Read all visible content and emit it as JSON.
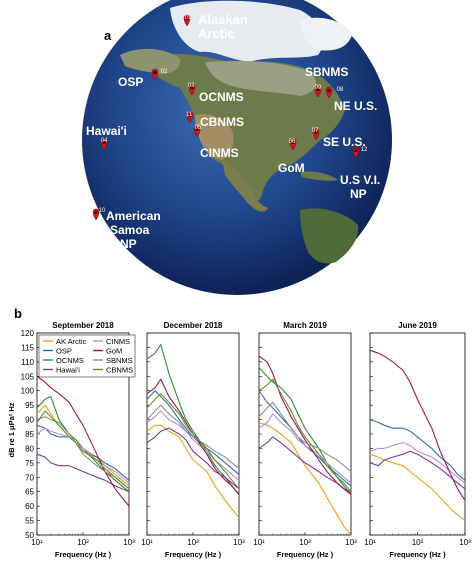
{
  "panel_a": {
    "label": "a",
    "sites": [
      {
        "id": "ak",
        "num": "01",
        "name": [
          "Alaskan",
          "Arctic"
        ]
      },
      {
        "id": "osp",
        "num": "02",
        "name": [
          "OSP"
        ]
      },
      {
        "id": "ocnms",
        "num": "03",
        "name": [
          "OCNMS"
        ]
      },
      {
        "id": "hawaii",
        "num": "04",
        "name": [
          "Hawai'i"
        ]
      },
      {
        "id": "cinms",
        "num": "05",
        "name": [
          "CINMS"
        ]
      },
      {
        "id": "gom",
        "num": "06",
        "name": [
          "GoM"
        ]
      },
      {
        "id": "seus",
        "num": "07",
        "name": [
          "SE U.S."
        ]
      },
      {
        "id": "neus",
        "num": "08",
        "name": [
          "NE U.S."
        ]
      },
      {
        "id": "sbnms",
        "num": "09",
        "name": [
          "SBNMS"
        ]
      },
      {
        "id": "samoa",
        "num": "10",
        "name": [
          "American",
          "Samoa",
          "NP"
        ]
      },
      {
        "id": "cbnms",
        "num": "11",
        "name": [
          "CBNMS"
        ]
      },
      {
        "id": "usvi",
        "num": "12",
        "name": [
          "U.S V.I.",
          "NP"
        ]
      }
    ]
  },
  "panel_b": {
    "label": "b",
    "ylabel": "dB re 1 μPa² Hz",
    "xlabel": "Frequency (Hz )",
    "legend": [
      {
        "name": "AK Arctic",
        "color": "#e8a21a"
      },
      {
        "name": "CINMS",
        "color": "#b88bd8"
      },
      {
        "name": "OSP",
        "color": "#2e6fb0"
      },
      {
        "name": "GoM",
        "color": "#a3174e"
      },
      {
        "name": "OCNMS",
        "color": "#2f8a3a"
      },
      {
        "name": "SBNMS",
        "color": "#8d8d8d"
      },
      {
        "name": "Hawai'i",
        "color": "#7a3b9c"
      },
      {
        "name": "CBNMS",
        "color": "#6b8e23"
      }
    ]
  },
  "chart_data": {
    "type": "line",
    "x_scale": "log",
    "xlim": [
      10,
      1000
    ],
    "ylim": [
      50,
      120
    ],
    "yticks": [
      50,
      55,
      60,
      65,
      70,
      75,
      80,
      85,
      90,
      95,
      100,
      105,
      110,
      115,
      120
    ],
    "xticks": [
      "10¹",
      "10²",
      "10³"
    ],
    "x": [
      10,
      15,
      20,
      30,
      50,
      70,
      100,
      200,
      300,
      500,
      700,
      1000
    ],
    "panels": [
      {
        "title": "September 2018",
        "series": [
          {
            "name": "AK Arctic",
            "color": "#e8a21a",
            "values": [
              92,
              95,
              92,
              88,
              84,
              82,
              80,
              77,
              74,
              71,
              69,
              67
            ]
          },
          {
            "name": "OSP",
            "color": "#2e6fb0",
            "values": [
              88,
              87,
              85,
              84,
              84,
              82,
              79,
              77,
              75,
              73,
              71,
              69
            ]
          },
          {
            "name": "OCNMS",
            "color": "#2f8a3a",
            "values": [
              94,
              97,
              98,
              90,
              85,
              83,
              80,
              75,
              72,
              69,
              67,
              65
            ]
          },
          {
            "name": "Hawai'i",
            "color": "#7a3b9c",
            "values": [
              78,
              77,
              75,
              74,
              74,
              73,
              72,
              70,
              69,
              67,
              66,
              65
            ]
          },
          {
            "name": "CINMS",
            "color": "#b88bd8",
            "values": [
              85,
              87,
              86,
              85,
              84,
              82,
              80,
              76,
              74,
              72,
              70,
              68
            ]
          },
          {
            "name": "GoM",
            "color": "#a3174e",
            "values": [
              105,
              103,
              101,
              99,
              96,
              92,
              88,
              78,
              72,
              66,
              63,
              60
            ]
          },
          {
            "name": "SBNMS",
            "color": "#8d8d8d",
            "values": [
              90,
              91,
              90,
              89,
              85,
              82,
              78,
              74,
              72,
              70,
              68,
              66
            ]
          },
          {
            "name": "CBNMS",
            "color": "#6b8e23",
            "values": [
              89,
              93,
              91,
              88,
              84,
              82,
              79,
              76,
              73,
              70,
              68,
              66
            ]
          }
        ]
      },
      {
        "title": "December 2018",
        "series": [
          {
            "name": "AK Arctic",
            "color": "#e8a21a",
            "values": [
              86,
              88,
              88,
              86,
              84,
              80,
              76,
              72,
              67,
              62,
              59,
              56
            ]
          },
          {
            "name": "OSP",
            "color": "#2e6fb0",
            "values": [
              97,
              100,
              98,
              95,
              90,
              87,
              84,
              80,
              78,
              75,
              73,
              71
            ]
          },
          {
            "name": "OCNMS",
            "color": "#2f8a3a",
            "values": [
              111,
              113,
              116,
              106,
              96,
              90,
              86,
              79,
              74,
              70,
              67,
              64
            ]
          },
          {
            "name": "Hawai'i",
            "color": "#7a3b9c",
            "values": [
              82,
              84,
              86,
              87,
              85,
              83,
              79,
              75,
              72,
              70,
              68,
              66
            ]
          },
          {
            "name": "CINMS",
            "color": "#b88bd8",
            "values": [
              89,
              91,
              93,
              90,
              88,
              86,
              83,
              79,
              76,
              73,
              71,
              69
            ]
          },
          {
            "name": "GoM",
            "color": "#a3174e",
            "values": [
              99,
              101,
              104,
              98,
              93,
              89,
              85,
              78,
              73,
              69,
              67,
              64
            ]
          },
          {
            "name": "SBNMS",
            "color": "#8d8d8d",
            "values": [
              90,
              93,
              95,
              92,
              89,
              86,
              84,
              81,
              79,
              77,
              75,
              73
            ]
          },
          {
            "name": "CBNMS",
            "color": "#6b8e23",
            "values": [
              94,
              97,
              99,
              96,
              92,
              88,
              85,
              80,
              76,
              72,
              69,
              66
            ]
          }
        ]
      },
      {
        "title": "March 2019",
        "series": [
          {
            "name": "AK Arctic",
            "color": "#e8a21a",
            "values": [
              89,
              88,
              87,
              85,
              82,
              78,
              74,
              68,
              63,
              57,
              53,
              50
            ]
          },
          {
            "name": "OSP",
            "color": "#2e6fb0",
            "values": [
              100,
              96,
              94,
              91,
              87,
              84,
              81,
              77,
              74,
              71,
              69,
              67
            ]
          },
          {
            "name": "OCNMS",
            "color": "#2f8a3a",
            "values": [
              108,
              105,
              103,
              101,
              97,
              92,
              87,
              80,
              75,
              70,
              67,
              64
            ]
          },
          {
            "name": "Hawai'i",
            "color": "#7a3b9c",
            "values": [
              80,
              82,
              84,
              82,
              79,
              77,
              75,
              72,
              70,
              68,
              66,
              65
            ]
          },
          {
            "name": "CINMS",
            "color": "#b88bd8",
            "values": [
              87,
              89,
              92,
              89,
              86,
              83,
              81,
              78,
              75,
              72,
              70,
              68
            ]
          },
          {
            "name": "GoM",
            "color": "#a3174e",
            "values": [
              112,
              110,
              106,
              98,
              91,
              87,
              83,
              76,
              72,
              68,
              66,
              64
            ]
          },
          {
            "name": "SBNMS",
            "color": "#8d8d8d",
            "values": [
              91,
              94,
              96,
              92,
              87,
              84,
              82,
              80,
              78,
              76,
              74,
              72
            ]
          },
          {
            "name": "CBNMS",
            "color": "#6b8e23",
            "values": [
              100,
              102,
              104,
              99,
              93,
              88,
              84,
              78,
              74,
              70,
              68,
              65
            ]
          }
        ]
      },
      {
        "title": "June 2019",
        "series": [
          {
            "name": "AK Arctic",
            "color": "#e8a21a",
            "values": [
              78,
              77,
              76,
              75,
              74,
              72,
              70,
              66,
              63,
              59,
              57,
              55
            ]
          },
          {
            "name": "OSP",
            "color": "#2e6fb0",
            "values": [
              90,
              89,
              88,
              87,
              87,
              86,
              84,
              80,
              77,
              74,
              71,
              69
            ]
          },
          {
            "name": "Hawai'i",
            "color": "#7a3b9c",
            "values": [
              75,
              74,
              76,
              77,
              78,
              79,
              78,
              75,
              73,
              70,
              68,
              66
            ]
          },
          {
            "name": "CINMS",
            "color": "#b88bd8",
            "values": [
              79,
              80,
              80,
              81,
              82,
              81,
              79,
              77,
              75,
              72,
              70,
              68
            ]
          },
          {
            "name": "GoM",
            "color": "#a3174e",
            "values": [
              114,
              113,
              112,
              110,
              107,
              103,
              97,
              87,
              79,
              71,
              66,
              62
            ]
          }
        ]
      }
    ]
  }
}
